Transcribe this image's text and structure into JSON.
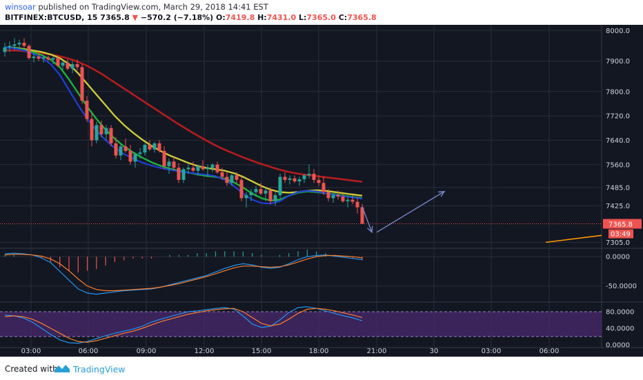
{
  "header": {
    "author": "winsoar",
    "published_text": "published on TradingView.com, March 29, 2018 14:41 EST",
    "symbol": "BITFINEX:BTCUSD, 15",
    "last": "7365.8",
    "change": "−570.2 (−7.18%)",
    "open_label": "O:",
    "open": "7419.8",
    "high_label": "H:",
    "high": "7431.0",
    "low_label": "L:",
    "low": "7365.0",
    "close_label": "C:",
    "close": "7365.8"
  },
  "footer": {
    "created_with": "Created with",
    "brand": "TradingView"
  },
  "colors": {
    "background": "#131722",
    "grid": "#2a2e39",
    "up": "#26a69a",
    "down": "#ef5350",
    "ema_red": "#b71c1c",
    "ema_yellow": "#c9c93a",
    "ema_green": "#1fb23a",
    "ema_blue": "#1e3fd8",
    "macd_line": "#2196f3",
    "signal_line": "#ff7f2a",
    "stoch_band": "#4a2a6e",
    "trendline": "#ff9800",
    "arrow": "#7986cb"
  },
  "chart_data": {
    "type": "candlestick",
    "symbol": "BITFINEX:BTCUSD",
    "interval": "15",
    "price_axis": {
      "ticks": [
        "8000.0",
        "7900.0",
        "7800.0",
        "7720.0",
        "7640.0",
        "7560.0",
        "7485.0",
        "7425.0",
        "7305.0"
      ],
      "ylim": [
        7290,
        8010
      ]
    },
    "last_price_label": "7365.8",
    "countdown_label": "03:49",
    "time_axis": {
      "ticks": [
        "03:00",
        "06:00",
        "09:00",
        "12:00",
        "15:00",
        "18:00",
        "21:00",
        "30",
        "03:00",
        "06:00"
      ]
    },
    "candles": [
      {
        "t": 0,
        "o": 7930,
        "h": 7960,
        "l": 7915,
        "c": 7945
      },
      {
        "t": 1,
        "o": 7945,
        "h": 7965,
        "l": 7930,
        "c": 7950
      },
      {
        "t": 2,
        "o": 7950,
        "h": 7975,
        "l": 7935,
        "c": 7955
      },
      {
        "t": 3,
        "o": 7955,
        "h": 7970,
        "l": 7940,
        "c": 7960
      },
      {
        "t": 4,
        "o": 7960,
        "h": 7975,
        "l": 7945,
        "c": 7950
      },
      {
        "t": 5,
        "o": 7950,
        "h": 7955,
        "l": 7905,
        "c": 7910
      },
      {
        "t": 6,
        "o": 7910,
        "h": 7925,
        "l": 7895,
        "c": 7915
      },
      {
        "t": 7,
        "o": 7915,
        "h": 7925,
        "l": 7900,
        "c": 7908
      },
      {
        "t": 8,
        "o": 7908,
        "h": 7920,
        "l": 7895,
        "c": 7912
      },
      {
        "t": 9,
        "o": 7912,
        "h": 7918,
        "l": 7900,
        "c": 7905
      },
      {
        "t": 10,
        "o": 7905,
        "h": 7915,
        "l": 7890,
        "c": 7910
      },
      {
        "t": 11,
        "o": 7910,
        "h": 7915,
        "l": 7880,
        "c": 7885
      },
      {
        "t": 12,
        "o": 7885,
        "h": 7900,
        "l": 7870,
        "c": 7895
      },
      {
        "t": 13,
        "o": 7895,
        "h": 7905,
        "l": 7870,
        "c": 7875
      },
      {
        "t": 14,
        "o": 7875,
        "h": 7900,
        "l": 7860,
        "c": 7890
      },
      {
        "t": 15,
        "o": 7890,
        "h": 7905,
        "l": 7870,
        "c": 7880
      },
      {
        "t": 16,
        "o": 7880,
        "h": 7890,
        "l": 7760,
        "c": 7770
      },
      {
        "t": 17,
        "o": 7770,
        "h": 7785,
        "l": 7700,
        "c": 7710
      },
      {
        "t": 18,
        "o": 7710,
        "h": 7730,
        "l": 7620,
        "c": 7640
      },
      {
        "t": 19,
        "o": 7640,
        "h": 7700,
        "l": 7630,
        "c": 7690
      },
      {
        "t": 20,
        "o": 7690,
        "h": 7705,
        "l": 7650,
        "c": 7660
      },
      {
        "t": 21,
        "o": 7660,
        "h": 7690,
        "l": 7640,
        "c": 7680
      },
      {
        "t": 22,
        "o": 7680,
        "h": 7690,
        "l": 7620,
        "c": 7630
      },
      {
        "t": 23,
        "o": 7630,
        "h": 7650,
        "l": 7580,
        "c": 7590
      },
      {
        "t": 24,
        "o": 7590,
        "h": 7630,
        "l": 7575,
        "c": 7620
      },
      {
        "t": 25,
        "o": 7620,
        "h": 7645,
        "l": 7600,
        "c": 7605
      },
      {
        "t": 26,
        "o": 7605,
        "h": 7625,
        "l": 7560,
        "c": 7570
      },
      {
        "t": 27,
        "o": 7570,
        "h": 7600,
        "l": 7550,
        "c": 7595
      },
      {
        "t": 28,
        "o": 7595,
        "h": 7615,
        "l": 7580,
        "c": 7600
      },
      {
        "t": 29,
        "o": 7600,
        "h": 7630,
        "l": 7590,
        "c": 7625
      },
      {
        "t": 30,
        "o": 7625,
        "h": 7640,
        "l": 7605,
        "c": 7610
      },
      {
        "t": 31,
        "o": 7610,
        "h": 7635,
        "l": 7600,
        "c": 7630
      },
      {
        "t": 32,
        "o": 7630,
        "h": 7640,
        "l": 7600,
        "c": 7605
      },
      {
        "t": 33,
        "o": 7605,
        "h": 7620,
        "l": 7545,
        "c": 7555
      },
      {
        "t": 34,
        "o": 7555,
        "h": 7580,
        "l": 7530,
        "c": 7570
      },
      {
        "t": 35,
        "o": 7570,
        "h": 7585,
        "l": 7540,
        "c": 7550
      },
      {
        "t": 36,
        "o": 7550,
        "h": 7565,
        "l": 7500,
        "c": 7510
      },
      {
        "t": 37,
        "o": 7510,
        "h": 7550,
        "l": 7500,
        "c": 7545
      },
      {
        "t": 38,
        "o": 7545,
        "h": 7560,
        "l": 7530,
        "c": 7550
      },
      {
        "t": 39,
        "o": 7550,
        "h": 7570,
        "l": 7535,
        "c": 7540
      },
      {
        "t": 40,
        "o": 7540,
        "h": 7560,
        "l": 7525,
        "c": 7555
      },
      {
        "t": 41,
        "o": 7555,
        "h": 7575,
        "l": 7540,
        "c": 7545
      },
      {
        "t": 42,
        "o": 7545,
        "h": 7560,
        "l": 7520,
        "c": 7550
      },
      {
        "t": 43,
        "o": 7550,
        "h": 7565,
        "l": 7535,
        "c": 7560
      },
      {
        "t": 44,
        "o": 7560,
        "h": 7570,
        "l": 7530,
        "c": 7535
      },
      {
        "t": 45,
        "o": 7535,
        "h": 7550,
        "l": 7510,
        "c": 7520
      },
      {
        "t": 46,
        "o": 7520,
        "h": 7535,
        "l": 7490,
        "c": 7500
      },
      {
        "t": 47,
        "o": 7500,
        "h": 7530,
        "l": 7490,
        "c": 7525
      },
      {
        "t": 48,
        "o": 7525,
        "h": 7535,
        "l": 7500,
        "c": 7510
      },
      {
        "t": 49,
        "o": 7510,
        "h": 7520,
        "l": 7440,
        "c": 7450
      },
      {
        "t": 50,
        "o": 7450,
        "h": 7470,
        "l": 7420,
        "c": 7460
      },
      {
        "t": 51,
        "o": 7460,
        "h": 7480,
        "l": 7440,
        "c": 7470
      },
      {
        "t": 52,
        "o": 7470,
        "h": 7490,
        "l": 7455,
        "c": 7480
      },
      {
        "t": 53,
        "o": 7480,
        "h": 7500,
        "l": 7460,
        "c": 7465
      },
      {
        "t": 54,
        "o": 7465,
        "h": 7485,
        "l": 7440,
        "c": 7475
      },
      {
        "t": 55,
        "o": 7475,
        "h": 7485,
        "l": 7430,
        "c": 7440
      },
      {
        "t": 56,
        "o": 7440,
        "h": 7470,
        "l": 7425,
        "c": 7460
      },
      {
        "t": 57,
        "o": 7460,
        "h": 7530,
        "l": 7450,
        "c": 7520
      },
      {
        "t": 58,
        "o": 7520,
        "h": 7535,
        "l": 7500,
        "c": 7510
      },
      {
        "t": 59,
        "o": 7510,
        "h": 7525,
        "l": 7495,
        "c": 7515
      },
      {
        "t": 60,
        "o": 7515,
        "h": 7525,
        "l": 7500,
        "c": 7505
      },
      {
        "t": 61,
        "o": 7505,
        "h": 7520,
        "l": 7490,
        "c": 7512
      },
      {
        "t": 62,
        "o": 7512,
        "h": 7530,
        "l": 7500,
        "c": 7525
      },
      {
        "t": 63,
        "o": 7525,
        "h": 7560,
        "l": 7515,
        "c": 7530
      },
      {
        "t": 64,
        "o": 7530,
        "h": 7545,
        "l": 7500,
        "c": 7510
      },
      {
        "t": 65,
        "o": 7510,
        "h": 7525,
        "l": 7490,
        "c": 7500
      },
      {
        "t": 66,
        "o": 7500,
        "h": 7520,
        "l": 7460,
        "c": 7470
      },
      {
        "t": 67,
        "o": 7470,
        "h": 7480,
        "l": 7440,
        "c": 7450
      },
      {
        "t": 68,
        "o": 7450,
        "h": 7470,
        "l": 7435,
        "c": 7460
      },
      {
        "t": 69,
        "o": 7460,
        "h": 7475,
        "l": 7445,
        "c": 7455
      },
      {
        "t": 70,
        "o": 7455,
        "h": 7465,
        "l": 7435,
        "c": 7440
      },
      {
        "t": 71,
        "o": 7440,
        "h": 7455,
        "l": 7420,
        "c": 7445
      },
      {
        "t": 72,
        "o": 7445,
        "h": 7460,
        "l": 7430,
        "c": 7438
      },
      {
        "t": 73,
        "o": 7438,
        "h": 7450,
        "l": 7400,
        "c": 7420
      },
      {
        "t": 74,
        "o": 7420,
        "h": 7431,
        "l": 7365,
        "c": 7366
      }
    ],
    "ema_red": [
      7935,
      7935,
      7934,
      7932,
      7930,
      7926,
      7922,
      7918,
      7912,
      7905,
      7896,
      7885,
      7872,
      7858,
      7842,
      7826,
      7810,
      7794,
      7778,
      7762,
      7746,
      7730,
      7714,
      7698,
      7683,
      7668,
      7654,
      7640,
      7627,
      7615,
      7604,
      7594,
      7584,
      7575,
      7566,
      7558,
      7550,
      7543,
      7537,
      7532,
      7528,
      7525,
      7522,
      7519,
      7516,
      7513,
      7510,
      7507,
      7504
    ],
    "ema_yellow": [
      7945,
      7944,
      7940,
      7935,
      7930,
      7922,
      7910,
      7890,
      7860,
      7825,
      7790,
      7755,
      7720,
      7690,
      7665,
      7642,
      7622,
      7605,
      7590,
      7578,
      7566,
      7556,
      7549,
      7545,
      7540,
      7532,
      7520,
      7505,
      7490,
      7478,
      7470,
      7468,
      7470,
      7474,
      7476,
      7474,
      7470,
      7466,
      7462,
      7458
    ],
    "ema_green": [
      7945,
      7943,
      7938,
      7930,
      7920,
      7905,
      7880,
      7840,
      7795,
      7750,
      7710,
      7675,
      7645,
      7620,
      7600,
      7583,
      7568,
      7556,
      7547,
      7540,
      7534,
      7528,
      7523,
      7520,
      7514,
      7502,
      7485,
      7465,
      7450,
      7442,
      7445,
      7458,
      7468,
      7472,
      7470,
      7466,
      7462,
      7458,
      7454,
      7450
    ],
    "ema_blue": [
      7945,
      7942,
      7935,
      7925,
      7912,
      7890,
      7855,
      7805,
      7755,
      7710,
      7672,
      7640,
      7615,
      7595,
      7580,
      7567,
      7557,
      7549,
      7543,
      7538,
      7534,
      7530,
      7527,
      7522,
      7510,
      7490,
      7465,
      7445,
      7434,
      7432,
      7440,
      7458,
      7470,
      7474,
      7472,
      7466,
      7460,
      7456,
      7452,
      7448
    ],
    "macd_axis": {
      "ticks": [
        "0.0000",
        "-50.0000"
      ],
      "ylim": [
        -75,
        12
      ]
    },
    "macd_line": [
      5,
      6,
      5,
      3,
      -2,
      -10,
      -25,
      -40,
      -55,
      -62,
      -64,
      -62,
      -60,
      -58,
      -57,
      -56,
      -55,
      -52,
      -48,
      -44,
      -40,
      -36,
      -32,
      -26,
      -20,
      -15,
      -12,
      -14,
      -18,
      -20,
      -18,
      -12,
      -5,
      0,
      2,
      3,
      1,
      -1,
      -3,
      -5
    ],
    "macd_signal": [
      3,
      4,
      4,
      3,
      1,
      -4,
      -12,
      -24,
      -38,
      -50,
      -56,
      -58,
      -58,
      -57,
      -56,
      -55,
      -54,
      -52,
      -49,
      -46,
      -42,
      -38,
      -34,
      -29,
      -24,
      -19,
      -16,
      -16,
      -17,
      -18,
      -17,
      -14,
      -9,
      -4,
      0,
      2,
      2,
      1,
      0,
      -2
    ],
    "macd_hist": [
      1,
      1,
      0,
      0,
      -1,
      -3,
      -6,
      -8,
      -9,
      -8,
      -7,
      -5,
      -3,
      -2,
      -1,
      -1,
      -1,
      0,
      1,
      1,
      1,
      2,
      2,
      3,
      3,
      3,
      3,
      2,
      1,
      0,
      1,
      2,
      3,
      4,
      3,
      2,
      1,
      0,
      -1,
      -2
    ],
    "stoch_axis": {
      "ticks": [
        "80.0000",
        "40.0000",
        "0.0000"
      ],
      "ylim": [
        0,
        100
      ],
      "band": [
        20,
        80
      ]
    },
    "stoch_k": [
      72,
      70,
      65,
      55,
      40,
      25,
      12,
      5,
      4,
      8,
      15,
      22,
      28,
      33,
      38,
      45,
      55,
      62,
      68,
      74,
      80,
      82,
      85,
      88,
      90,
      86,
      70,
      50,
      42,
      45,
      60,
      78,
      90,
      92,
      88,
      82,
      76,
      70,
      65,
      58
    ],
    "stoch_d": [
      68,
      70,
      68,
      62,
      52,
      40,
      28,
      16,
      8,
      6,
      10,
      16,
      22,
      28,
      33,
      40,
      48,
      56,
      62,
      68,
      74,
      78,
      82,
      85,
      87,
      88,
      80,
      66,
      52,
      46,
      50,
      62,
      76,
      86,
      88,
      86,
      82,
      77,
      72,
      66
    ],
    "annotations": [
      {
        "type": "trendline",
        "from": {
          "t": 112,
          "price": 7305
        },
        "to": {
          "t": 144,
          "price": 7368
        }
      },
      {
        "type": "arrow",
        "from": {
          "t": 74,
          "price": 7422
        },
        "to": {
          "t": 76,
          "price": 7338
        }
      },
      {
        "type": "arrow",
        "from": {
          "t": 77,
          "price": 7338
        },
        "to": {
          "t": 91,
          "price": 7472
        }
      }
    ]
  }
}
